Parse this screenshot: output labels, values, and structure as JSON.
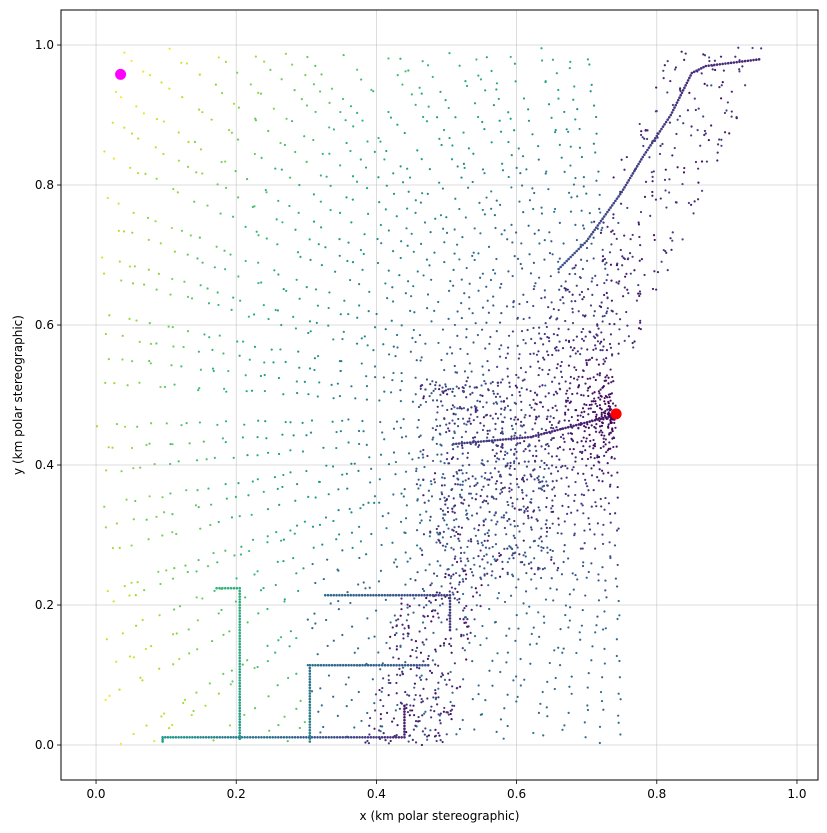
{
  "chart_data": {
    "type": "scatter",
    "title": "",
    "xlabel": "x (km polar stereographic)",
    "ylabel": "y (km polar stereographic)",
    "xlim": [
      -0.05,
      1.03
    ],
    "ylim": [
      -0.05,
      1.05
    ],
    "xticks": [
      "0.0",
      "0.2",
      "0.4",
      "0.6",
      "0.8",
      "1.0"
    ],
    "yticks": [
      "0.0",
      "0.2",
      "0.4",
      "0.6",
      "0.8",
      "1.0"
    ],
    "grid": true,
    "colormap": "viridis",
    "markers": [
      {
        "name": "",
        "x": 0.035,
        "y": 0.958,
        "color": "#ff00ff"
      },
      {
        "name": "",
        "x": 0.742,
        "y": 0.473,
        "color": "#ff0000"
      }
    ],
    "tracks": [
      {
        "points": [
          [
            0.095,
            0.005
          ],
          [
            0.095,
            0.011
          ],
          [
            0.11,
            0.011
          ],
          [
            0.2,
            0.011
          ],
          [
            0.3,
            0.011
          ],
          [
            0.4,
            0.011
          ],
          [
            0.44,
            0.011
          ],
          [
            0.44,
            0.06
          ]
        ],
        "c0": 0.55,
        "c1": 0.05
      },
      {
        "points": [
          [
            0.172,
            0.224
          ],
          [
            0.205,
            0.224
          ],
          [
            0.205,
            0.12
          ],
          [
            0.205,
            0.005
          ]
        ],
        "c0": 0.65,
        "c1": 0.55
      },
      {
        "points": [
          [
            0.305,
            0.005
          ],
          [
            0.305,
            0.114
          ],
          [
            0.4,
            0.114
          ],
          [
            0.478,
            0.114
          ]
        ],
        "c0": 0.45,
        "c1": 0.25
      },
      {
        "points": [
          [
            0.327,
            0.214
          ],
          [
            0.42,
            0.214
          ],
          [
            0.505,
            0.214
          ],
          [
            0.505,
            0.16
          ]
        ],
        "c0": 0.35,
        "c1": 0.15
      },
      {
        "points": [
          [
            0.51,
            0.43
          ],
          [
            0.62,
            0.44
          ],
          [
            0.735,
            0.47
          ]
        ],
        "c0": 0.2,
        "c1": 0.05
      },
      {
        "points": [
          [
            0.66,
            0.68
          ],
          [
            0.7,
            0.72
          ],
          [
            0.75,
            0.79
          ],
          [
            0.78,
            0.84
          ],
          [
            0.82,
            0.9
          ],
          [
            0.85,
            0.96
          ],
          [
            0.87,
            0.97
          ],
          [
            0.95,
            0.98
          ]
        ],
        "c0": 0.25,
        "c1": 0.1
      }
    ]
  }
}
